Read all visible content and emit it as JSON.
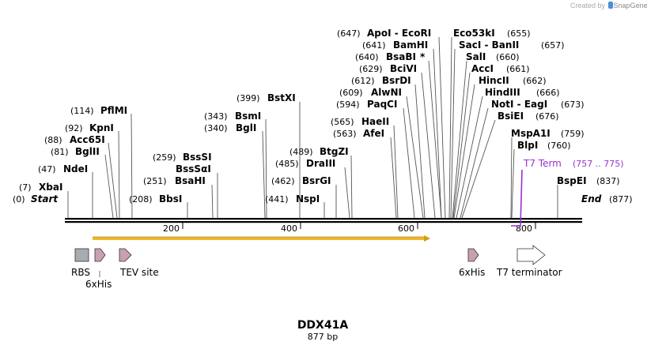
{
  "credit": {
    "prefix": "Created by",
    "brand": "SnapGene"
  },
  "sequence": {
    "name": "DDX41A",
    "length_label": "877 bp",
    "length": 877,
    "start_label": "Start",
    "end_label": "End",
    "start_pos": "(0)",
    "end_pos": "(877)"
  },
  "ruler": {
    "ticks": [
      200,
      400,
      600,
      800
    ],
    "tick_labels": [
      "200",
      "400",
      "600",
      "800"
    ]
  },
  "enzymes": [
    {
      "name": "XbaI",
      "pos": "(7)",
      "site": 7,
      "star": ""
    },
    {
      "name": "NdeI",
      "pos": "(47)",
      "site": 47,
      "star": ""
    },
    {
      "name": "BglII",
      "pos": "(81)",
      "site": 81,
      "star": ""
    },
    {
      "name": "Acc65I",
      "pos": "(88)",
      "site": 88,
      "star": ""
    },
    {
      "name": "KpnI",
      "pos": "(92)",
      "site": 92,
      "star": ""
    },
    {
      "name": "PflMI",
      "pos": "(114)",
      "site": 114,
      "star": ""
    },
    {
      "name": "BbsI",
      "pos": "(208)",
      "site": 208,
      "star": ""
    },
    {
      "name": "BsaHI",
      "pos": "(251)",
      "site": 251,
      "star": ""
    },
    {
      "name": "BssSαI",
      "pos": "",
      "site": 259,
      "star": ""
    },
    {
      "name": "BssSI",
      "pos": "(259)",
      "site": 259,
      "star": ""
    },
    {
      "name": "BglI",
      "pos": "(340)",
      "site": 340,
      "star": ""
    },
    {
      "name": "BsmI",
      "pos": "(343)",
      "site": 343,
      "star": ""
    },
    {
      "name": "BstXI",
      "pos": "(399)",
      "site": 399,
      "star": ""
    },
    {
      "name": "NspI",
      "pos": "(441)",
      "site": 441,
      "star": ""
    },
    {
      "name": "BsrGI",
      "pos": "(462)",
      "site": 462,
      "star": ""
    },
    {
      "name": "DraIII",
      "pos": "(485)",
      "site": 485,
      "star": ""
    },
    {
      "name": "BtgZI",
      "pos": "(489)",
      "site": 489,
      "star": ""
    },
    {
      "name": "AfeI",
      "pos": "(563)",
      "site": 563,
      "star": ""
    },
    {
      "name": "HaeII",
      "pos": "(565)",
      "site": 565,
      "star": ""
    },
    {
      "name": "PaqCI",
      "pos": "(594)",
      "site": 594,
      "star": ""
    },
    {
      "name": "AlwNI",
      "pos": "(609)",
      "site": 609,
      "star": ""
    },
    {
      "name": "BsrDI",
      "pos": "(612)",
      "site": 612,
      "star": ""
    },
    {
      "name": "BciVI",
      "pos": "(629)",
      "site": 629,
      "star": ""
    },
    {
      "name": "BsaBI",
      "pos": "(640)",
      "site": 640,
      "star": "*"
    },
    {
      "name": "BamHI",
      "pos": "(641)",
      "site": 641,
      "star": ""
    },
    {
      "name": "ApoI - EcoRI",
      "pos": "(647)",
      "site": 647,
      "star": ""
    },
    {
      "name": "Eco53kI",
      "pos": "(655)",
      "site": 655,
      "star": ""
    },
    {
      "name": "SacI - BanII",
      "pos": "(657)",
      "site": 657,
      "star": ""
    },
    {
      "name": "SalI",
      "pos": "(660)",
      "site": 660,
      "star": ""
    },
    {
      "name": "AccI",
      "pos": "(661)",
      "site": 661,
      "star": ""
    },
    {
      "name": "HincII",
      "pos": "(662)",
      "site": 662,
      "star": ""
    },
    {
      "name": "HindIII",
      "pos": "(666)",
      "site": 666,
      "star": ""
    },
    {
      "name": "NotI - EagI",
      "pos": "(673)",
      "site": 673,
      "star": ""
    },
    {
      "name": "BsiEI",
      "pos": "(676)",
      "site": 676,
      "star": ""
    },
    {
      "name": "MspA1I",
      "pos": "(759)",
      "site": 759,
      "star": ""
    },
    {
      "name": "BlpI",
      "pos": "(760)",
      "site": 760,
      "star": ""
    },
    {
      "name": "BspEI",
      "pos": "(837)",
      "site": 837,
      "star": ""
    }
  ],
  "primer": {
    "name": "T7 Term",
    "range": "(757 .. 775)",
    "color": "#9933cc"
  },
  "orf": {
    "color": "#f2b825"
  },
  "features": [
    {
      "name": "RBS",
      "kind": "box",
      "color": "#a9abb3"
    },
    {
      "name": "6xHis",
      "kind": "arrow",
      "color": "#c8a0b0"
    },
    {
      "name": "TEV site",
      "kind": "arrow",
      "color": "#c8a0b0"
    },
    {
      "name": "6xHis",
      "kind": "arrow",
      "color": "#c8a0b0"
    },
    {
      "name": "T7 terminator",
      "kind": "arrow",
      "color": "#ffffff"
    }
  ]
}
